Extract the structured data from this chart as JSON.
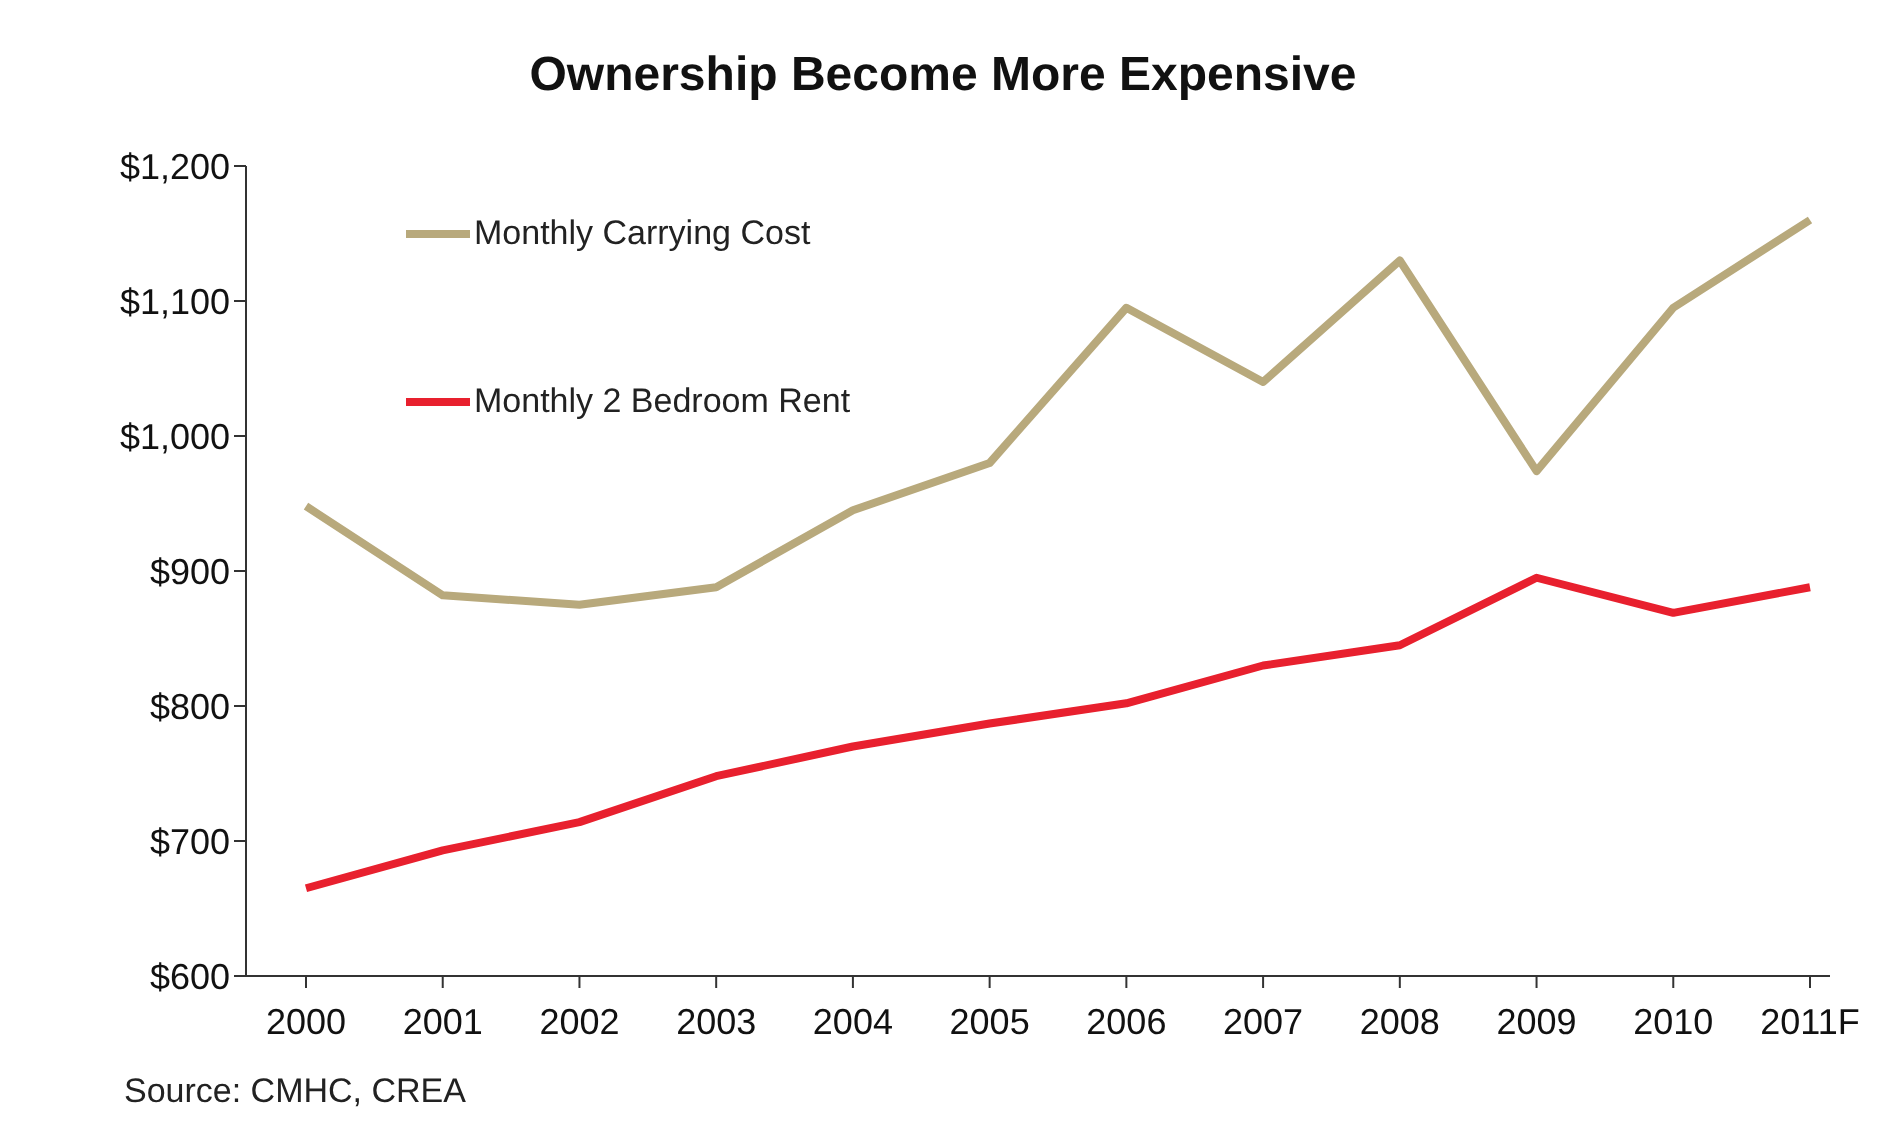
{
  "chart_data": {
    "type": "line",
    "title": "Ownership Become More Expensive",
    "categories": [
      "2000",
      "2001",
      "2002",
      "2003",
      "2004",
      "2005",
      "2006",
      "2007",
      "2008",
      "2009",
      "2010",
      "2011F"
    ],
    "series": [
      {
        "name": "Monthly Carrying Cost",
        "color": "#b8a97c",
        "values": [
          948,
          882,
          875,
          888,
          945,
          980,
          1095,
          1040,
          1130,
          974,
          1095,
          1160
        ]
      },
      {
        "name": "Monthly 2 Bedroom Rent",
        "color": "#e8202e",
        "values": [
          665,
          693,
          714,
          748,
          770,
          787,
          802,
          830,
          845,
          895,
          869,
          888
        ]
      }
    ],
    "ylim": [
      600,
      1200
    ],
    "yticks": [
      {
        "value": 600,
        "label": "$600"
      },
      {
        "value": 700,
        "label": "$700"
      },
      {
        "value": 800,
        "label": "$800"
      },
      {
        "value": 900,
        "label": "$900"
      },
      {
        "value": 1000,
        "label": "$1,000"
      },
      {
        "value": 1100,
        "label": "$1,100"
      },
      {
        "value": 1200,
        "label": "$1,200"
      }
    ],
    "grid": false,
    "legend": "top left",
    "marker": "none",
    "line_style": "solid",
    "annotations": [
      "Source: CMHC, CREA"
    ]
  }
}
